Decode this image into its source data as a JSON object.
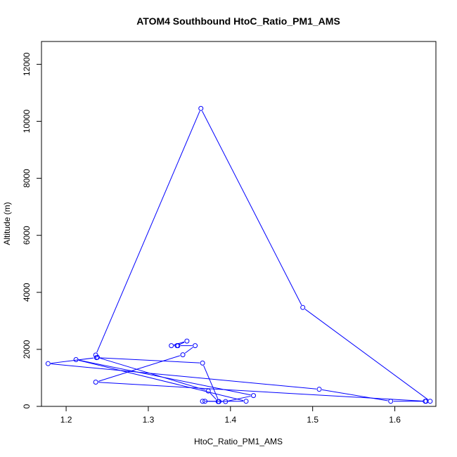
{
  "chart_data": {
    "type": "line",
    "title": "ATOM4 Southbound HtoC_Ratio_PM1_AMS",
    "xlabel": "HtoC_Ratio_PM1_AMS",
    "ylabel": "Altitude (m)",
    "xlim": [
      1.17,
      1.65
    ],
    "ylim": [
      0,
      12800
    ],
    "x_ticks": [
      1.2,
      1.3,
      1.4,
      1.5,
      1.6
    ],
    "y_ticks": [
      0,
      2000,
      4000,
      6000,
      8000,
      10000,
      12000
    ],
    "grid": false,
    "series_color": "#0000ff",
    "points": [
      {
        "x": 1.637,
        "y": 180
      },
      {
        "x": 1.643,
        "y": 180
      },
      {
        "x": 1.488,
        "y": 3470
      },
      {
        "x": 1.364,
        "y": 10450
      },
      {
        "x": 1.236,
        "y": 1800
      },
      {
        "x": 1.238,
        "y": 1720
      },
      {
        "x": 1.373,
        "y": 540
      },
      {
        "x": 1.385,
        "y": 170
      },
      {
        "x": 1.394,
        "y": 170
      },
      {
        "x": 1.428,
        "y": 380
      },
      {
        "x": 1.212,
        "y": 1640
      },
      {
        "x": 1.419,
        "y": 180
      },
      {
        "x": 1.366,
        "y": 180
      },
      {
        "x": 1.369,
        "y": 180
      },
      {
        "x": 1.386,
        "y": 170
      },
      {
        "x": 1.366,
        "y": 1520
      },
      {
        "x": 1.237,
        "y": 1710
      },
      {
        "x": 1.178,
        "y": 1500
      },
      {
        "x": 1.508,
        "y": 600
      },
      {
        "x": 1.595,
        "y": 180
      },
      {
        "x": 1.638,
        "y": 180
      },
      {
        "x": 1.236,
        "y": 850
      },
      {
        "x": 1.342,
        "y": 1810
      },
      {
        "x": 1.357,
        "y": 2130
      },
      {
        "x": 1.336,
        "y": 2130
      },
      {
        "x": 1.328,
        "y": 2130
      },
      {
        "x": 1.347,
        "y": 2290
      },
      {
        "x": 1.335,
        "y": 2130
      }
    ]
  }
}
